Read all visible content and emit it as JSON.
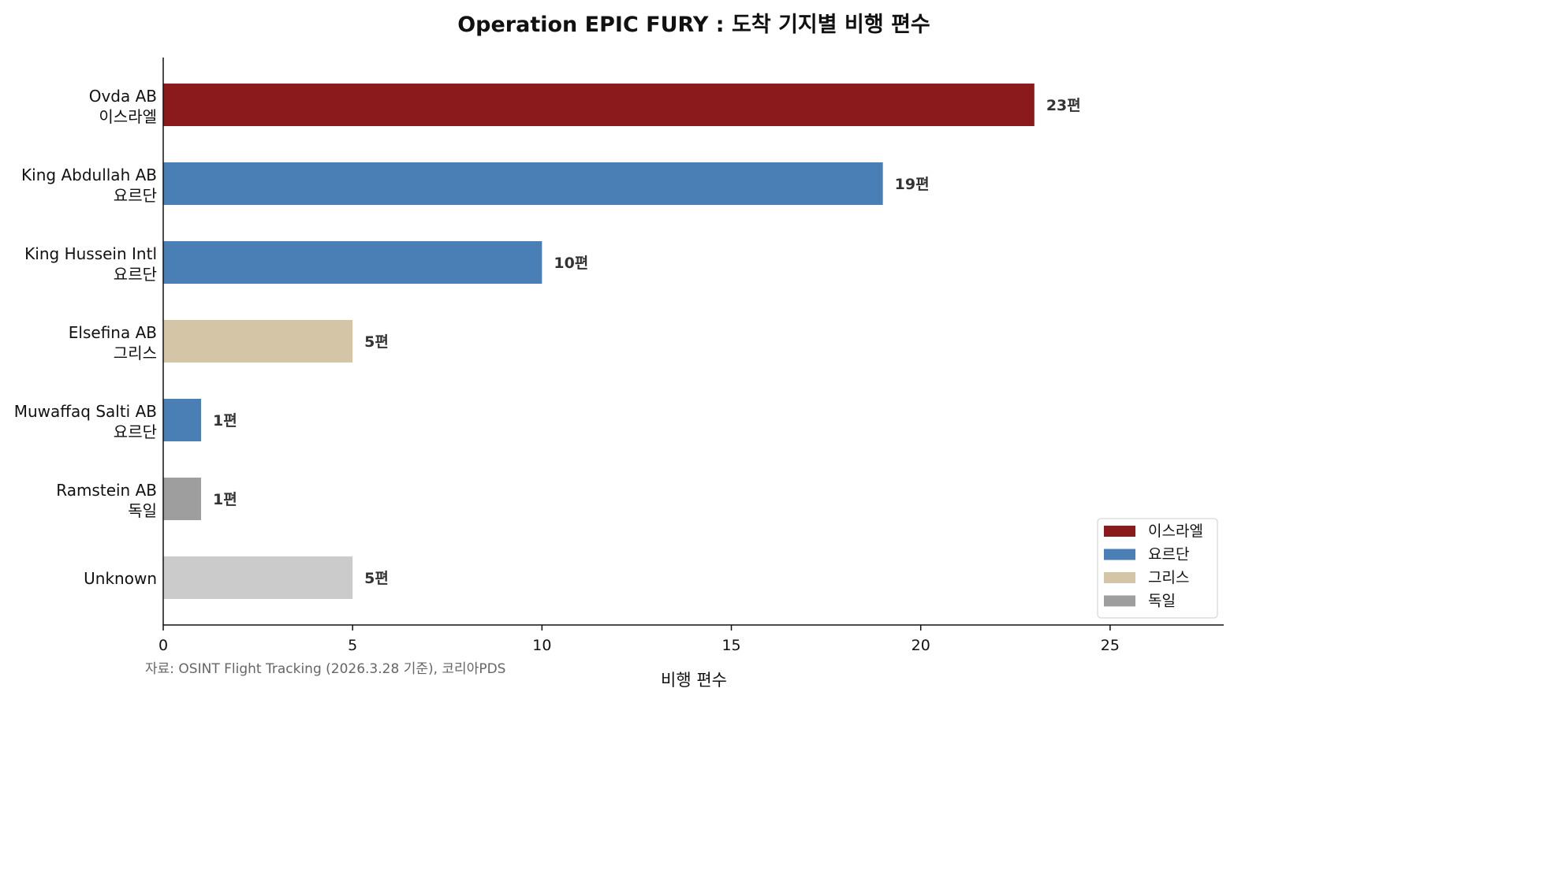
{
  "chart_data": {
    "type": "bar",
    "orientation": "horizontal",
    "title": "Operation EPIC FURY : 도착 기지별 비행 편수",
    "xlabel": "비행 편수",
    "ylabel": "",
    "xlim": [
      0,
      28
    ],
    "x_ticks": [
      0,
      5,
      10,
      15,
      20,
      25
    ],
    "grid": false,
    "legend_position": "bottom-right",
    "value_suffix": "편",
    "categories": [
      {
        "base": "Ovda AB",
        "country": "이스라엘"
      },
      {
        "base": "King Abdullah AB",
        "country": "요르단"
      },
      {
        "base": "King Hussein Intl",
        "country": "요르단"
      },
      {
        "base": "Elsefina AB",
        "country": "그리스"
      },
      {
        "base": "Muwaffaq Salti AB",
        "country": "요르단"
      },
      {
        "base": "Ramstein AB",
        "country": "독일"
      },
      {
        "base": "Unknown",
        "country": ""
      }
    ],
    "values": [
      23,
      19,
      10,
      5,
      1,
      1,
      5
    ],
    "bar_colors": [
      "#8b1a1c",
      "#4a7fb5",
      "#4a7fb5",
      "#d4c5a7",
      "#4a7fb5",
      "#9e9e9e",
      "#cbcbcb"
    ],
    "legend": [
      {
        "label": "이스라엘",
        "color": "#8b1a1c"
      },
      {
        "label": "요르단",
        "color": "#4a7fb5"
      },
      {
        "label": "그리스",
        "color": "#d4c5a7"
      },
      {
        "label": "독일",
        "color": "#9e9e9e"
      }
    ],
    "source_note": "자료: OSINT Flight Tracking (2026.3.28 기준), 코리아PDS"
  }
}
